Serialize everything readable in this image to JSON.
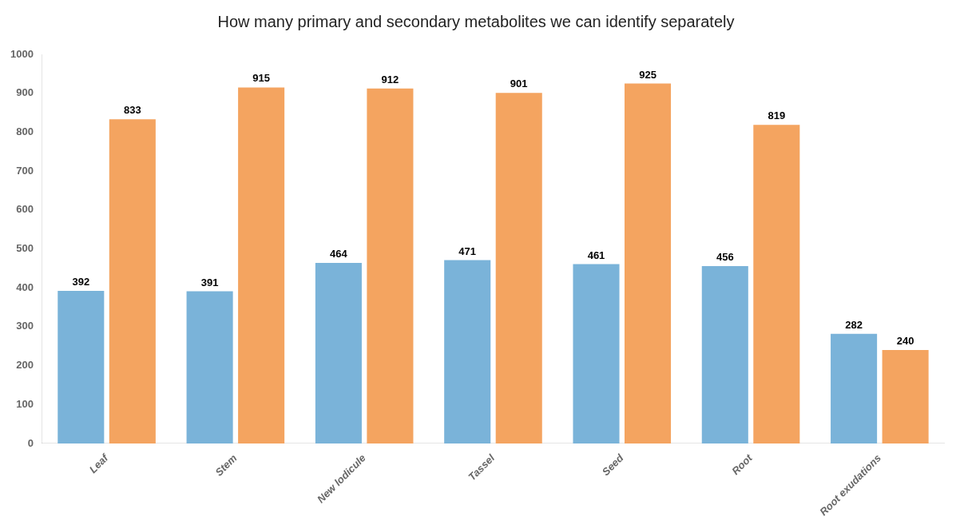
{
  "chart_data": {
    "type": "bar",
    "title": "How many primary and secondary metabolites we can identify separately",
    "categories": [
      "Leaf",
      "Stem",
      "New lodicule",
      "Tassel",
      "Seed",
      "Root",
      "Root exudations"
    ],
    "series": [
      {
        "color": "#7ab3d9",
        "values": [
          392,
          391,
          464,
          471,
          461,
          456,
          282
        ]
      },
      {
        "color": "#f4a460",
        "values": [
          833,
          915,
          912,
          901,
          925,
          819,
          240
        ]
      }
    ],
    "ylim": [
      0,
      1000
    ],
    "yticks": [
      0,
      100,
      200,
      300,
      400,
      500,
      600,
      700,
      800,
      900,
      1000
    ],
    "grid": false,
    "data_labels": true
  }
}
